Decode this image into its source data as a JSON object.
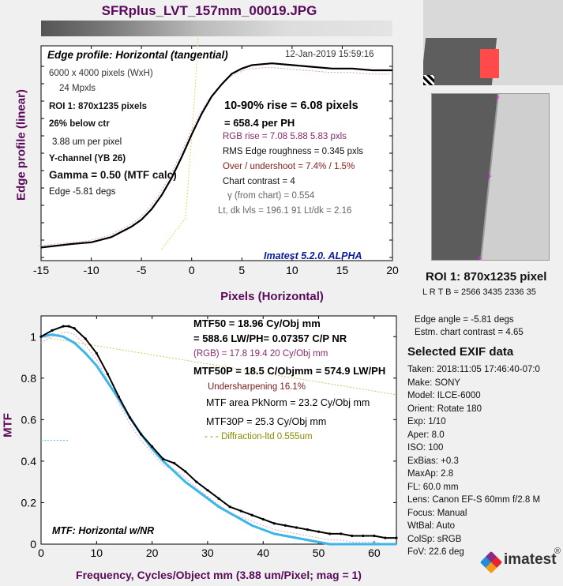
{
  "title": "SFRplus_LVT_157mm_00019.JPG",
  "colors": {
    "background": "#f0f0f0",
    "title": "#5a0a5a",
    "curve_black": "#000000",
    "curve_cyan": "#3ab7e8",
    "rgb_text": "#8a2a6a",
    "overshoot_text": "#8b1a1a",
    "undersharp_text": "#7a1a1a",
    "diffraction": "#8a8a00",
    "imatest_blue": "#0a1aa0"
  },
  "edge_chart": {
    "heading": "Edge profile: Horizontal (tangential)",
    "timestamp": "12-Jan-2019 15:59:16",
    "info_left": [
      "6000 x 4000 pixels (WxH)",
      "24 Mpxls",
      "ROI 1:  870x1235 pixels",
      "26% below ctr",
      "3.88 um per pixel",
      "Y-channel  (YB 26)",
      "Gamma = 0.50 (MTF calc)",
      "Edge  -5.81 degs"
    ],
    "rise": "10-90% rise = 6.08 pixels",
    "per_ph": "=  658.4 per PH",
    "rgb_rise": "RGB rise =   7.08    5.88    5.83 pxls",
    "roughness": "RMS Edge roughness  =  0.345 pxls",
    "overshoot": "Over / undershoot =  7.4% /  1.5%",
    "contrast": "Chart contrast = 4",
    "gamma_chart": "γ (from chart) = 0.554",
    "levels": "Lt, dk lvls = 196.1  91  Lt/dk = 2.16",
    "version": "Imatest 5.2.0. ALPHA"
  },
  "mtf_chart": {
    "mtf50": "MTF50 = 18.96 Cy/Obj mm",
    "lwph": "= 588.6 LW/PH= 0.07357 C/P  NR",
    "rgb": "(RGB) = 17.8  19.4  20 Cy/Obj mm",
    "mtf50p": "MTF50P = 18.5 C/Objmm = 574.9 LW/PH",
    "undersharpening": "Undersharpening 16.1%",
    "area": "MTF area PkNorm = 23.2 Cy/Obj mm",
    "mtf30p": "MTF30P = 25.3 Cy/Obj mm",
    "diffraction": "- - - Diffraction-ltd  0.555um",
    "label": "MTF: Horizontal w/NR"
  },
  "roi": {
    "label": "ROI 1:  870x1235 pixel",
    "coords": "L R  T B = 2566 3435  2336 35"
  },
  "side_info": [
    "Edge angle = -5.81 degs",
    "Estm. chart contrast = 4.65"
  ],
  "exif": {
    "heading": "Selected EXIF data",
    "lines": [
      "Taken: 2018:11:05 17:46:40-07:0",
      "Make:  SONY",
      "Model:  ILCE-6000",
      "Orient: Rotate 180",
      "Exp:    1/10",
      "Aper:   8.0",
      "ISO:    100",
      "ExBias: +0.3",
      "MaxAp: 2.8",
      "FL:      60.0 mm",
      "Lens:   Canon EF-S 60mm f/2.8 M",
      "Focus:  Manual",
      "WtBal: Auto",
      "ColSp: sRGB",
      "FoV:    22.6 deg"
    ]
  },
  "logo": {
    "text": "imatest",
    "mark": "®"
  },
  "chart_data": [
    {
      "type": "line",
      "ylabel": "Edge profile (linear)",
      "xlabel": "Pixels (Horizontal)",
      "xlim": [
        -15,
        20
      ],
      "xticks": [
        -15,
        -10,
        -5,
        0,
        5,
        10,
        15,
        20
      ],
      "series": [
        {
          "x": [
            -15,
            -12,
            -10,
            -8,
            -6,
            -5,
            -4,
            -3,
            -2,
            -1,
            0,
            1,
            2,
            3,
            4,
            5,
            6,
            8,
            10,
            12,
            14,
            16,
            18,
            20
          ],
          "y": [
            0.03,
            0.05,
            0.06,
            0.09,
            0.15,
            0.19,
            0.25,
            0.33,
            0.43,
            0.55,
            0.68,
            0.8,
            0.9,
            0.97,
            1.03,
            1.06,
            1.08,
            1.09,
            1.08,
            1.07,
            1.06,
            1.06,
            1.05,
            1.05
          ]
        }
      ]
    },
    {
      "type": "line",
      "ylabel": "MTF",
      "xlabel": "Frequency, Cycles/Object mm  (3.88 um/Pixel;  mag = 1)",
      "xlim": [
        0,
        64
      ],
      "ylim": [
        0,
        1.1
      ],
      "xticks": [
        0,
        10,
        20,
        30,
        40,
        50,
        60
      ],
      "yticks": [
        0,
        0.2,
        0.4,
        0.6,
        0.8,
        1
      ],
      "series": [
        {
          "x": [
            0,
            2,
            4,
            5,
            6,
            8,
            10,
            12,
            14,
            16,
            18,
            20,
            22,
            24,
            26,
            28,
            30,
            32,
            34,
            36,
            38,
            40,
            42,
            44,
            46,
            48,
            50,
            52,
            54,
            56,
            58,
            60,
            62,
            64
          ],
          "y": [
            1.0,
            1.03,
            1.05,
            1.05,
            1.04,
            0.99,
            0.92,
            0.82,
            0.71,
            0.61,
            0.53,
            0.47,
            0.41,
            0.39,
            0.35,
            0.3,
            0.26,
            0.22,
            0.18,
            0.16,
            0.14,
            0.12,
            0.1,
            0.09,
            0.08,
            0.07,
            0.06,
            0.05,
            0.05,
            0.04,
            0.04,
            0.04,
            0.03,
            0.03
          ]
        },
        {
          "x": [
            0,
            2,
            4,
            6,
            8,
            10,
            12,
            14,
            16,
            18,
            20,
            22,
            24,
            26,
            28,
            30,
            32,
            34,
            36,
            38,
            40,
            42,
            44,
            46,
            48,
            50,
            52,
            54,
            56,
            58,
            60,
            62,
            64
          ],
          "y": [
            1.0,
            1.01,
            1.0,
            0.97,
            0.92,
            0.86,
            0.78,
            0.7,
            0.61,
            0.53,
            0.46,
            0.4,
            0.35,
            0.3,
            0.26,
            0.22,
            0.18,
            0.15,
            0.12,
            0.09,
            0.07,
            0.05,
            0.04,
            0.03,
            0.02,
            0.01,
            0.0,
            0.0,
            0.0,
            0.0,
            0.0,
            0.0,
            0.0
          ]
        }
      ]
    }
  ]
}
